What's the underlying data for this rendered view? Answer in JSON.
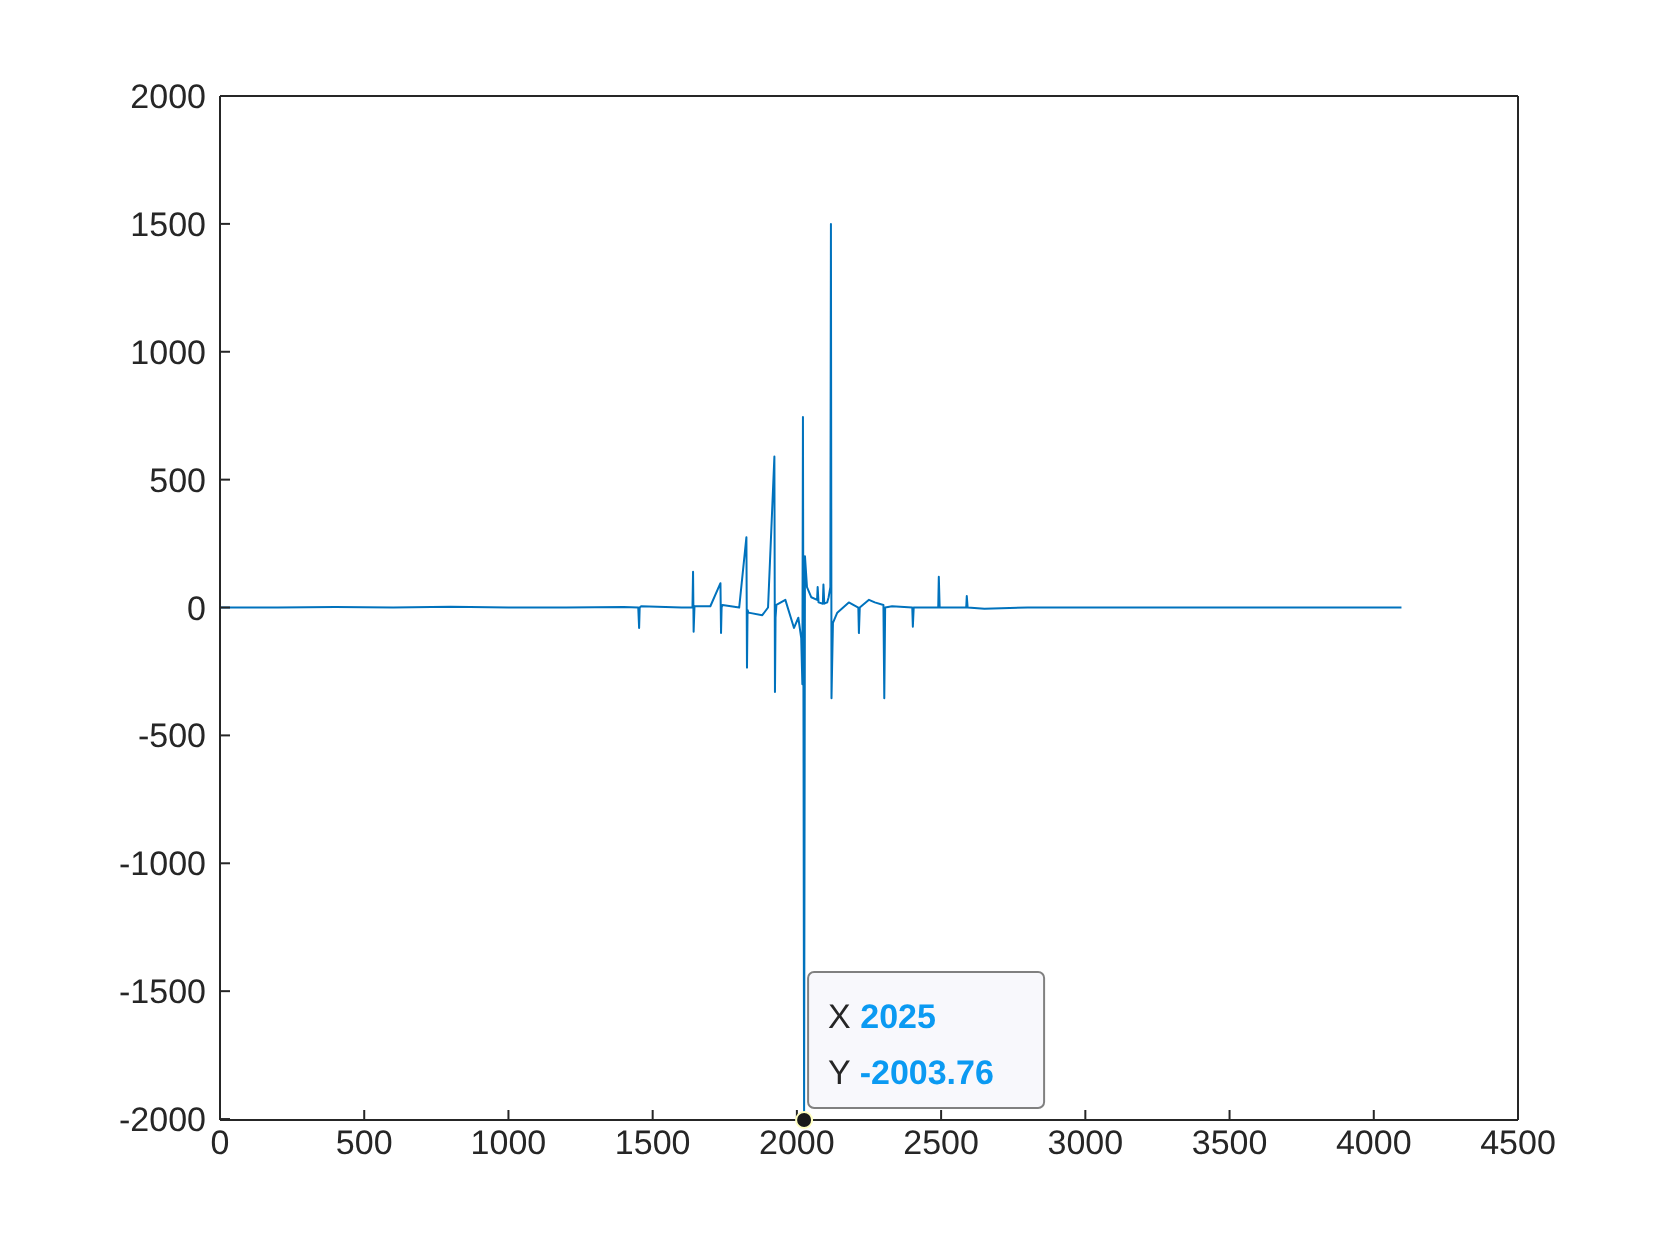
{
  "chart_data": {
    "type": "line",
    "x": [
      0,
      200,
      400,
      600,
      800,
      1000,
      1200,
      1400,
      1450,
      1453,
      1455,
      1460,
      1600,
      1638,
      1640,
      1642,
      1645,
      1700,
      1735,
      1737,
      1739,
      1742,
      1800,
      1825,
      1827,
      1829,
      1832,
      1880,
      1900,
      1922,
      1924,
      1926,
      1929,
      1960,
      1990,
      2005,
      2015,
      2019,
      2021,
      2023,
      2025,
      2028,
      2035,
      2050,
      2070,
      2072,
      2075,
      2090,
      2092,
      2095,
      2105,
      2110,
      2116,
      2118,
      2120,
      2125,
      2140,
      2180,
      2213,
      2215,
      2218,
      2250,
      2270,
      2300,
      2303,
      2306,
      2330,
      2400,
      2402,
      2405,
      2450,
      2490,
      2492,
      2495,
      2587,
      2589,
      2592,
      2650,
      2800,
      3000,
      3200,
      3400,
      3600,
      3800,
      4000,
      4096
    ],
    "series": [
      {
        "color": "#0072bd",
        "values": [
          0,
          0,
          2,
          0,
          3,
          0,
          0,
          2,
          0,
          -80,
          0,
          5,
          0,
          0,
          140,
          -95,
          5,
          5,
          95,
          -100,
          0,
          10,
          0,
          275,
          -235,
          -10,
          -20,
          -30,
          0,
          590,
          -330,
          -40,
          10,
          30,
          -80,
          -40,
          -120,
          -300,
          745,
          -500,
          -2003.76,
          200,
          80,
          40,
          30,
          80,
          20,
          15,
          90,
          15,
          20,
          40,
          80,
          1500,
          -355,
          -60,
          -20,
          20,
          0,
          -100,
          0,
          30,
          20,
          10,
          -355,
          0,
          5,
          0,
          -75,
          0,
          0,
          0,
          120,
          0,
          0,
          45,
          0,
          -5,
          0,
          0,
          0,
          0,
          0,
          0,
          0,
          0
        ]
      }
    ],
    "xlim": [
      0,
      4500
    ],
    "xticks": [
      0,
      500,
      1000,
      1500,
      2000,
      2500,
      3000,
      3500,
      4000,
      4500
    ],
    "ylim": [
      -2003.76,
      2000
    ],
    "yticks": [
      -2000,
      -1500,
      -1000,
      -500,
      0,
      500,
      1000,
      1500,
      2000
    ],
    "annotations": [
      {
        "text": "X 2025\nY -2003.76",
        "x": 2025,
        "y": -2003.76
      }
    ]
  }
}
